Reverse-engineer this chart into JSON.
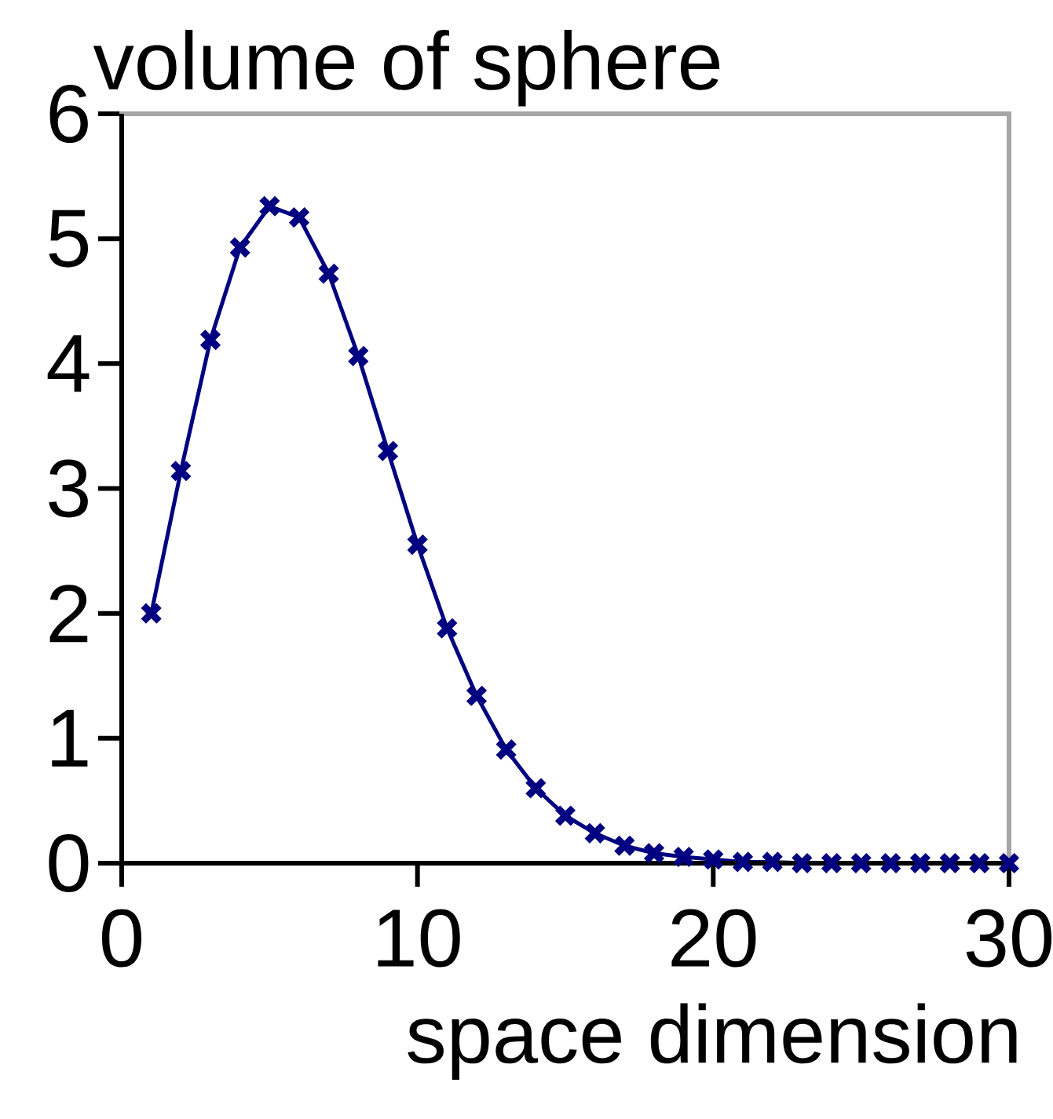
{
  "chart_data": {
    "type": "line",
    "title": "volume of sphere",
    "xlabel": "space dimension",
    "x": [
      1,
      2,
      3,
      4,
      5,
      6,
      7,
      8,
      9,
      10,
      11,
      12,
      13,
      14,
      15,
      16,
      17,
      18,
      19,
      20,
      21,
      22,
      23,
      24,
      25,
      26,
      27,
      28,
      29,
      30
    ],
    "series": [
      {
        "color": "#000080",
        "values": [
          2,
          3.14,
          4.19,
          4.93,
          5.26,
          5.17,
          4.72,
          4.06,
          3.3,
          2.55,
          1.88,
          1.34,
          0.91,
          0.6,
          0.38,
          0.24,
          0.14,
          0.08,
          0.05,
          0.03,
          0.01,
          0.01,
          0,
          0,
          0,
          0,
          0,
          0,
          0,
          0
        ]
      }
    ],
    "xlim": [
      0,
      30
    ],
    "ylim": [
      0,
      6
    ],
    "xticks": [
      0,
      10,
      20,
      30
    ],
    "yticks": [
      0,
      1,
      2,
      3,
      4,
      5,
      6
    ],
    "marker": "cross",
    "line_style": "solid",
    "grid": false
  }
}
